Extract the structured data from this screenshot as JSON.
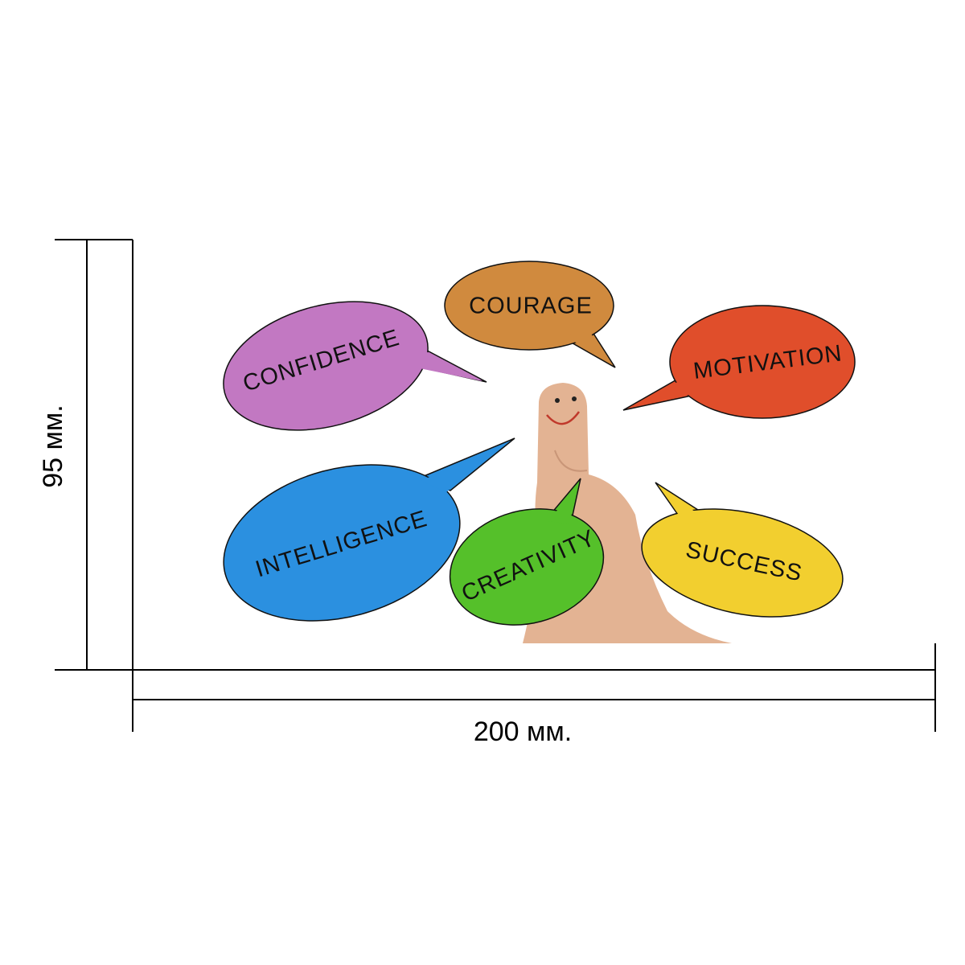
{
  "dimensions": {
    "height": "95 мм.",
    "width": "200 мм."
  },
  "bubbles": [
    {
      "label": "CONFIDENCE"
    },
    {
      "label": "COURAGE"
    },
    {
      "label": "MOTIVATION"
    },
    {
      "label": "INTELLIGENCE"
    },
    {
      "label": "CREATIVITY"
    },
    {
      "label": "SUCCESS"
    }
  ]
}
